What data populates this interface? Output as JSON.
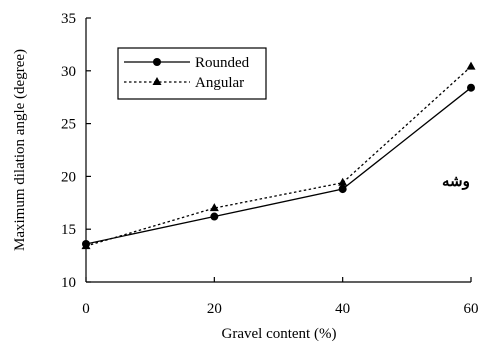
{
  "chart_data": {
    "type": "line",
    "x": [
      0,
      20,
      40,
      60
    ],
    "xlabel": "Gravel content (%)",
    "ylabel": "Maximum dilation angle (degree)",
    "xlim": [
      0,
      60
    ],
    "ylim": [
      10,
      35
    ],
    "xticks": [
      "0",
      "20",
      "40",
      "60"
    ],
    "yticks": [
      "10",
      "15",
      "20",
      "25",
      "30",
      "35"
    ],
    "grid": false,
    "legend_position": "top-left",
    "series": [
      {
        "name": "Rounded",
        "values": [
          13.6,
          16.2,
          18.8,
          28.4
        ],
        "marker": "circle",
        "line": "solid",
        "color": "#000000"
      },
      {
        "name": "Angular",
        "values": [
          13.4,
          17.0,
          19.4,
          30.4
        ],
        "marker": "triangle",
        "line": "dotted",
        "color": "#000000"
      }
    ],
    "annotation": "وشه"
  }
}
